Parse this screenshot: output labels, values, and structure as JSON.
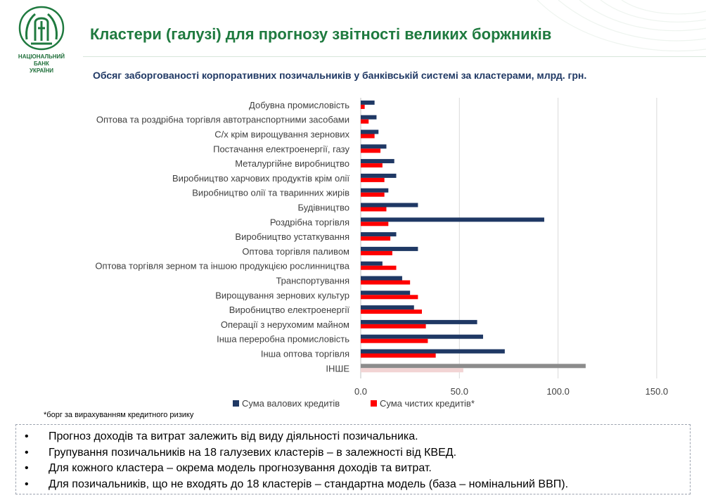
{
  "header": {
    "title": "Кластери (галузі) для прогнозу звітності великих боржників",
    "subtitle": "Обсяг заборгованості корпоративних позичальників у банківській системі за кластерами, млрд. грн.",
    "logo_text": [
      "НАЦІОНАЛЬНИЙ",
      "БАНК",
      "УКРАЇНИ"
    ]
  },
  "colors": {
    "gross": "#1f3864",
    "net": "#ff0000",
    "other_gross": "#8c8c8c",
    "other_net": "#f2d4d4",
    "title": "#1f7a3f"
  },
  "chart_data": {
    "type": "bar",
    "orientation": "horizontal",
    "categories": [
      "Добувна промисловість",
      "Оптова та роздрібна торгівля автотранспортними засобами",
      "С/х крім вирощування зернових",
      "Постачання електроенергії, газу",
      "Металургійне виробництво",
      "Виробництво харчових продуктів крім олії",
      "Виробництво олії та тваринних жирів",
      "Будівництво",
      "Роздрібна торгівля",
      "Виробництво устаткування",
      "Оптова торгівля  паливом",
      "Оптова торгівля зерном та іншою продукцією рослинництва",
      "Транспортування",
      "Вирощування зернових культур",
      "Виробництво електроенергії",
      "Операції з нерухомим майном",
      "Інша переробна промисловість",
      "Інша оптова торгівля",
      "ІНШЕ"
    ],
    "series": [
      {
        "name": "Сума валових кредитів",
        "values": [
          7,
          8,
          9,
          13,
          17,
          18,
          14,
          29,
          93,
          18,
          29,
          11,
          21,
          25,
          27,
          59,
          62,
          73,
          114
        ]
      },
      {
        "name": "Сума чистих кредитів*",
        "values": [
          2,
          4,
          7,
          10,
          11,
          12,
          12,
          13,
          14,
          15,
          16,
          18,
          25,
          29,
          31,
          33,
          34,
          38,
          52
        ]
      }
    ],
    "xlim": [
      -10,
      150
    ],
    "xticks": [
      "0.0",
      "50.0",
      "100.0",
      "150.0"
    ],
    "xtick_values": [
      0,
      50,
      100,
      150
    ],
    "grid": true,
    "legend": "bottom"
  },
  "footnote": "*борг за вирахуванням кредитного ризику",
  "bullets": [
    "Прогноз доходів та витрат залежить від виду діяльності позичальника.",
    "Групування позичальників на 18 галузевих кластерів – в залежності від КВЕД.",
    "Для кожного кластера – окрема модель прогнозування доходів та витрат.",
    "Для позичальників, що не входять до 18 кластерів – стандартна модель (база – номінальний ВВП)."
  ],
  "bullet_marker": "•"
}
